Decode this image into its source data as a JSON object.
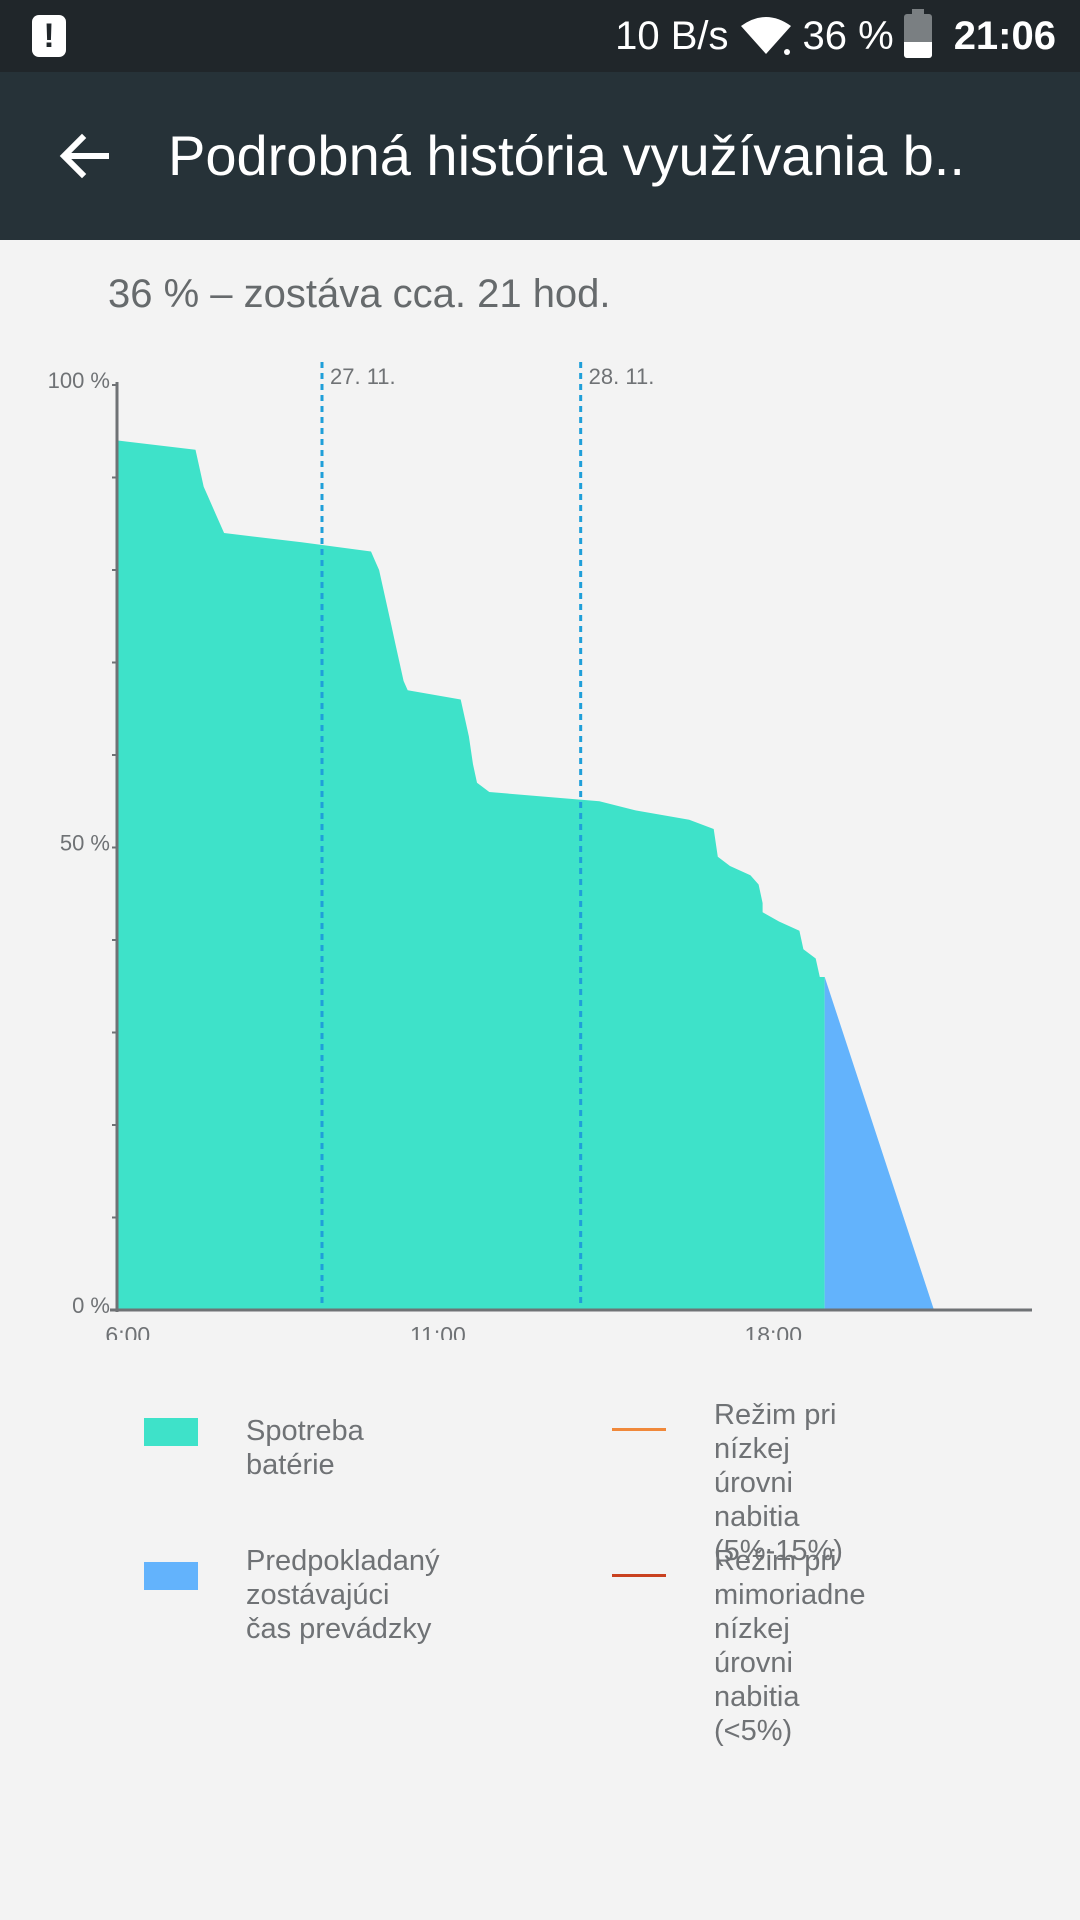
{
  "status_bar": {
    "network_speed": "10 B/s",
    "battery_percent": "36 %",
    "battery_level": 0.36,
    "time": "21:06",
    "alert_icon": "alert-icon",
    "wifi_icon": "wifi-icon"
  },
  "app_bar": {
    "title": "Podrobná história využívania b..",
    "back_icon": "arrow-back-icon"
  },
  "summary": "36 % – zostáva cca. 21 hod.",
  "chart_data": {
    "type": "area",
    "y_ticks": [
      "100 %",
      "50 %",
      "0 %"
    ],
    "x_ticks": [
      "6:00",
      "11:00",
      "18:00"
    ],
    "date_markers": [
      "27. 11.",
      "28. 11."
    ],
    "ylim": [
      0,
      100
    ],
    "series": [
      {
        "name": "Spotreba batérie",
        "color": "#3ee2c9",
        "points": [
          [
            0.0,
            94
          ],
          [
            0.095,
            93
          ],
          [
            0.1,
            91
          ],
          [
            0.105,
            89
          ],
          [
            0.11,
            88
          ],
          [
            0.12,
            86
          ],
          [
            0.13,
            84
          ],
          [
            0.225,
            83
          ],
          [
            0.31,
            82
          ],
          [
            0.315,
            81
          ],
          [
            0.32,
            80
          ],
          [
            0.325,
            78
          ],
          [
            0.33,
            76
          ],
          [
            0.335,
            74
          ],
          [
            0.34,
            72
          ],
          [
            0.345,
            70
          ],
          [
            0.35,
            68
          ],
          [
            0.355,
            67
          ],
          [
            0.42,
            66
          ],
          [
            0.425,
            64
          ],
          [
            0.43,
            62
          ],
          [
            0.435,
            59
          ],
          [
            0.44,
            57
          ],
          [
            0.455,
            56
          ],
          [
            0.59,
            55
          ],
          [
            0.635,
            54
          ],
          [
            0.7,
            53
          ],
          [
            0.73,
            52
          ],
          [
            0.735,
            49
          ],
          [
            0.75,
            48
          ],
          [
            0.775,
            47
          ],
          [
            0.785,
            46
          ],
          [
            0.79,
            44
          ],
          [
            0.79,
            43
          ],
          [
            0.81,
            42
          ],
          [
            0.835,
            41
          ],
          [
            0.84,
            39
          ],
          [
            0.855,
            38
          ],
          [
            0.86,
            36
          ],
          [
            0.866,
            36
          ]
        ],
        "last_value": 36
      },
      {
        "name": "Predpokladaný zostávajúci čas prevádzky",
        "color": "#63b3fc",
        "points": [
          [
            0.866,
            36
          ],
          [
            1.0,
            0
          ]
        ]
      }
    ],
    "legend_lines": [
      {
        "name": "Režim pri nízkej úrovni nabitia (5%-15%)",
        "color": "#f0883a"
      },
      {
        "name": "Režim pri mimoriadne nízkej úrovni nabitia (<5%)",
        "color": "#c9411f"
      }
    ],
    "legend": {
      "battery_usage": "Spotreba batérie",
      "predicted": "Predpokladaný zostávajúci\nčas prevádzky",
      "low_mode": "Režim pri nízkej úrovni\nnabitia (5%-15%)",
      "very_low_mode": "Režim pri mimoriadne\nnízkej úrovni nabitia (<5%)"
    }
  }
}
